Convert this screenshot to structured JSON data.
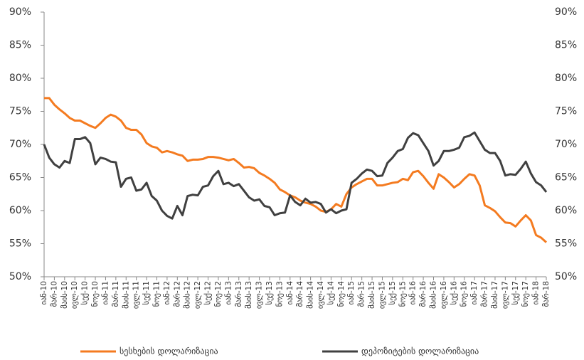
{
  "chart_data": {
    "type": "line",
    "categories": [
      "იან-10",
      null,
      "მარ-10",
      null,
      "მაის-10",
      null,
      "ივლ-10",
      null,
      "სექ-10",
      null,
      "ნოე-10",
      null,
      "იან-11",
      null,
      "მარ-11",
      null,
      "მაის-11",
      null,
      "ივლ-11",
      null,
      "სექ-11",
      null,
      "ნოე-11",
      null,
      "იან-12",
      null,
      "მარ-12",
      null,
      "მაის-12",
      null,
      "ივლ-12",
      null,
      "სექ-12",
      null,
      "ნოე-12",
      null,
      "იან-13",
      null,
      "მარ-13",
      null,
      "მაის-13",
      null,
      "ივლ-13",
      null,
      "სექ-13",
      null,
      "ნოე-13",
      null,
      "იან-14",
      null,
      "მარ-14",
      null,
      "მაის-14",
      null,
      "ივლ-14",
      null,
      "სექ-14",
      null,
      "ნოე-14",
      null,
      "იან-15",
      null,
      "მარ-15",
      null,
      "მაის-15",
      null,
      "ივლ-15",
      null,
      "სექ-15",
      null,
      "ნოე-15",
      null,
      "იან-16",
      null,
      "მარ-16",
      null,
      "მაის-16",
      null,
      "ივლ-16",
      null,
      "სექ-16",
      null,
      "ნოე-16",
      null,
      "იან-17",
      null,
      "მარ-17",
      null,
      "მაის-17",
      null,
      "ივლ-17",
      null,
      "სექ-17",
      null,
      "ნოე-17",
      null,
      "იან-18",
      null,
      "მარ-18"
    ],
    "series": [
      {
        "name": "სესხების დოლარიზაცია",
        "color": "#f47b20",
        "values": [
          77,
          77,
          76,
          75.3,
          74.7,
          74,
          73.6,
          73.6,
          73.2,
          72.8,
          72.5,
          73.2,
          74,
          74.5,
          74.2,
          73.6,
          72.5,
          72.2,
          72.2,
          71.5,
          70.2,
          69.7,
          69.5,
          68.8,
          69,
          68.8,
          68.5,
          68.3,
          67.5,
          67.7,
          67.7,
          67.8,
          68.1,
          68.1,
          68,
          67.8,
          67.6,
          67.8,
          67.2,
          66.5,
          66.6,
          66.4,
          65.7,
          65.3,
          64.8,
          64.2,
          63.2,
          62.8,
          62.3,
          62,
          61.5,
          61.2,
          61,
          60.6,
          60,
          59.8,
          60.2,
          61,
          60.6,
          62.5,
          63.5,
          64,
          64.4,
          64.8,
          64.8,
          63.8,
          63.8,
          64,
          64.2,
          64.3,
          64.8,
          64.6,
          65.8,
          66,
          65.2,
          64.2,
          63.3,
          65.5,
          65,
          64.3,
          63.5,
          64,
          64.8,
          65.5,
          65.3,
          63.8,
          60.8,
          60.4,
          59.9,
          59,
          58.2,
          58.1,
          57.6,
          58.5,
          59.3,
          58.5,
          56.3,
          55.9,
          55.2
        ]
      },
      {
        "name": "დეპოზიტების დოლარიზაცია",
        "color": "#404040",
        "values": [
          70,
          68,
          67,
          66.5,
          67.5,
          67.2,
          70.8,
          70.8,
          71.1,
          70.2,
          67,
          68,
          67.8,
          67.4,
          67.3,
          63.6,
          64.8,
          65,
          63,
          63.2,
          64.2,
          62.2,
          61.5,
          60,
          59.2,
          58.8,
          60.7,
          59.3,
          62.2,
          62.4,
          62.3,
          63.6,
          63.8,
          65.2,
          66,
          64,
          64.2,
          63.7,
          64,
          63,
          62,
          61.5,
          61.7,
          60.7,
          60.5,
          59.3,
          59.6,
          59.7,
          62.3,
          61.3,
          60.8,
          61.8,
          61.2,
          61.3,
          61,
          59.7,
          60.2,
          59.6,
          60,
          60.2,
          64.2,
          64.8,
          65.6,
          66.2,
          66,
          65.2,
          65.3,
          67.2,
          68,
          69,
          69.3,
          71,
          71.7,
          71.4,
          70.2,
          69,
          66.8,
          67.5,
          69,
          69,
          69.2,
          69.5,
          71.1,
          71.3,
          71.8,
          70.5,
          69.2,
          68.7,
          68.7,
          67.5,
          65.3,
          65.5,
          65.4,
          66.3,
          67.4,
          65.6,
          64.3,
          63.8,
          62.8
        ]
      }
    ],
    "ylim": [
      50,
      90
    ],
    "yticks": [
      {
        "value": 50,
        "label": "50%"
      },
      {
        "value": 55,
        "label": "55%"
      },
      {
        "value": 60,
        "label": "60%"
      },
      {
        "value": 65,
        "label": "65%"
      },
      {
        "value": 70,
        "label": "70%"
      },
      {
        "value": 75,
        "label": "75%"
      },
      {
        "value": 80,
        "label": "80%"
      },
      {
        "value": 85,
        "label": "85%"
      },
      {
        "value": 90,
        "label": "90%"
      }
    ],
    "y2lim": [
      50,
      90
    ],
    "y2ticks": [
      {
        "value": 50,
        "label": "50%"
      },
      {
        "value": 55,
        "label": "55%"
      },
      {
        "value": 60,
        "label": "60%"
      },
      {
        "value": 65,
        "label": "65%"
      },
      {
        "value": 70,
        "label": "70%"
      },
      {
        "value": 75,
        "label": "75%"
      },
      {
        "value": 80,
        "label": "80%"
      },
      {
        "value": 85,
        "label": "85%"
      },
      {
        "value": 90,
        "label": "90%"
      }
    ],
    "legend": "bottom"
  }
}
